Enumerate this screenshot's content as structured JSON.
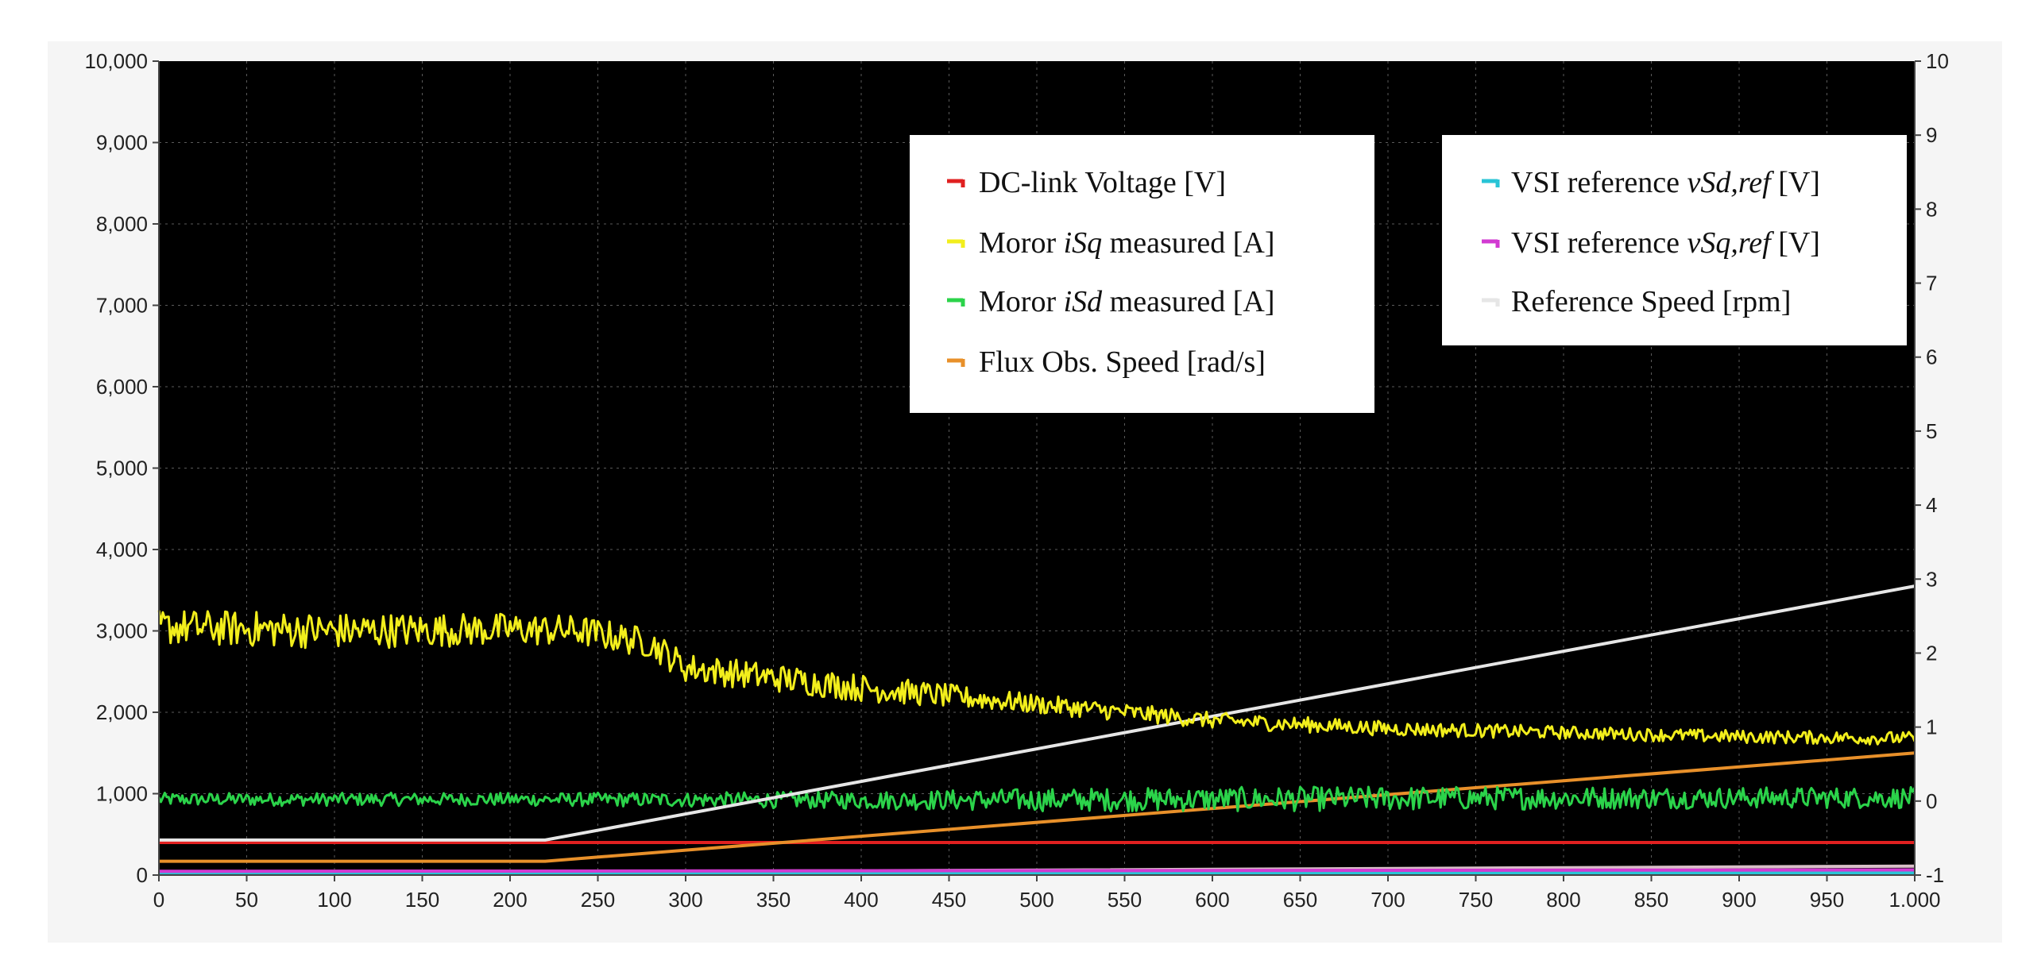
{
  "chart_data": {
    "type": "line",
    "title": "",
    "xlabel": "",
    "ylabel": "",
    "xlim": [
      0,
      1000
    ],
    "ylim_left": [
      0,
      10000
    ],
    "ylim_right": [
      -1,
      10
    ],
    "grid": true,
    "background": "#000000",
    "x_ticks": [
      0,
      50,
      100,
      150,
      200,
      250,
      300,
      350,
      400,
      450,
      500,
      550,
      600,
      650,
      700,
      750,
      800,
      850,
      900,
      950,
      1000
    ],
    "x_tick_labels": [
      "0",
      "50",
      "100",
      "150",
      "200",
      "250",
      "300",
      "350",
      "400",
      "450",
      "500",
      "550",
      "600",
      "650",
      "700",
      "750",
      "800",
      "850",
      "900",
      "950",
      "1.000"
    ],
    "y_left_ticks": [
      0,
      1000,
      2000,
      3000,
      4000,
      5000,
      6000,
      7000,
      8000,
      9000,
      10000
    ],
    "y_left_tick_labels": [
      "0",
      "1,000",
      "2,000",
      "3,000",
      "4,000",
      "5,000",
      "6,000",
      "7,000",
      "8,000",
      "9,000",
      "10,000"
    ],
    "y_right_ticks": [
      -1,
      0,
      1,
      2,
      3,
      4,
      5,
      6,
      7,
      8,
      9,
      10
    ],
    "y_right_tick_labels": [
      "-1",
      "0",
      "1",
      "2",
      "3",
      "4",
      "5",
      "6",
      "7",
      "8",
      "9",
      "10"
    ],
    "legends": [
      {
        "placement": "top-center",
        "entries": [
          {
            "key": "dc",
            "parts": [
              {
                "text": "DC-link Voltage [V]",
                "italic": false
              }
            ]
          },
          {
            "key": "isq",
            "parts": [
              {
                "text": "Moror ",
                "italic": false
              },
              {
                "text": "iSq",
                "italic": true
              },
              {
                "text": " measured [A]",
                "italic": false
              }
            ]
          },
          {
            "key": "isd",
            "parts": [
              {
                "text": "Moror ",
                "italic": false
              },
              {
                "text": "iSd",
                "italic": true
              },
              {
                "text": " measured [A]",
                "italic": false
              }
            ]
          },
          {
            "key": "flux",
            "parts": [
              {
                "text": "Flux Obs. Speed [rad/s]",
                "italic": false
              }
            ]
          }
        ]
      },
      {
        "placement": "top-right",
        "entries": [
          {
            "key": "vsd",
            "parts": [
              {
                "text": "VSI reference ",
                "italic": false
              },
              {
                "text": "vSd,ref",
                "italic": true
              },
              {
                "text": " [V]",
                "italic": false
              }
            ]
          },
          {
            "key": "vsq",
            "parts": [
              {
                "text": "VSI reference ",
                "italic": false
              },
              {
                "text": "vSq,ref",
                "italic": true
              },
              {
                "text": " [V]",
                "italic": false
              }
            ]
          },
          {
            "key": "ref",
            "parts": [
              {
                "text": " Reference Speed [rpm]",
                "italic": false
              }
            ]
          }
        ]
      }
    ],
    "series": [
      {
        "key": "dc",
        "color": "#e02020",
        "axis": "left",
        "x": [
          0,
          1000
        ],
        "y": [
          400,
          400
        ]
      },
      {
        "key": "isq",
        "color": "#f2ee1c",
        "axis": "left",
        "noisy": true,
        "noise": [
          220,
          220,
          200,
          180,
          170,
          120,
          100,
          90,
          80,
          80,
          80
        ],
        "x": [
          0,
          100,
          200,
          240,
          280,
          300,
          400,
          500,
          560,
          600,
          650,
          700,
          800,
          900,
          1000
        ],
        "y": [
          3050,
          3000,
          3020,
          3000,
          2850,
          2550,
          2300,
          2100,
          1980,
          1900,
          1850,
          1800,
          1750,
          1700,
          1680
        ]
      },
      {
        "key": "isd",
        "color": "#2bd34a",
        "axis": "left",
        "noisy": true,
        "noise": [
          80,
          80,
          80,
          90,
          110,
          140,
          150,
          150,
          140,
          130,
          130
        ],
        "x": [
          0,
          200,
          400,
          600,
          800,
          1000
        ],
        "y": [
          930,
          930,
          920,
          930,
          950,
          950
        ]
      },
      {
        "key": "flux",
        "color": "#e8902a",
        "axis": "left",
        "x": [
          0,
          220,
          1000
        ],
        "y": [
          170,
          170,
          1500
        ]
      },
      {
        "key": "vsd",
        "color": "#29c4d6",
        "axis": "right",
        "x": [
          0,
          1000
        ],
        "y": [
          -0.97,
          -0.97
        ]
      },
      {
        "key": "vsq",
        "color": "#d23ad2",
        "axis": "right",
        "x": [
          0,
          1000
        ],
        "y": [
          -0.95,
          -0.93
        ]
      },
      {
        "key": "ref",
        "color": "#e6e6e6",
        "axis": "left",
        "x": [
          0,
          220,
          1000
        ],
        "y": [
          430,
          430,
          3550
        ]
      },
      {
        "key": "ref_low",
        "color": "#d9c0c8",
        "axis": "left",
        "x": [
          0,
          220,
          500,
          1000
        ],
        "y": [
          40,
          40,
          60,
          110
        ]
      }
    ]
  }
}
